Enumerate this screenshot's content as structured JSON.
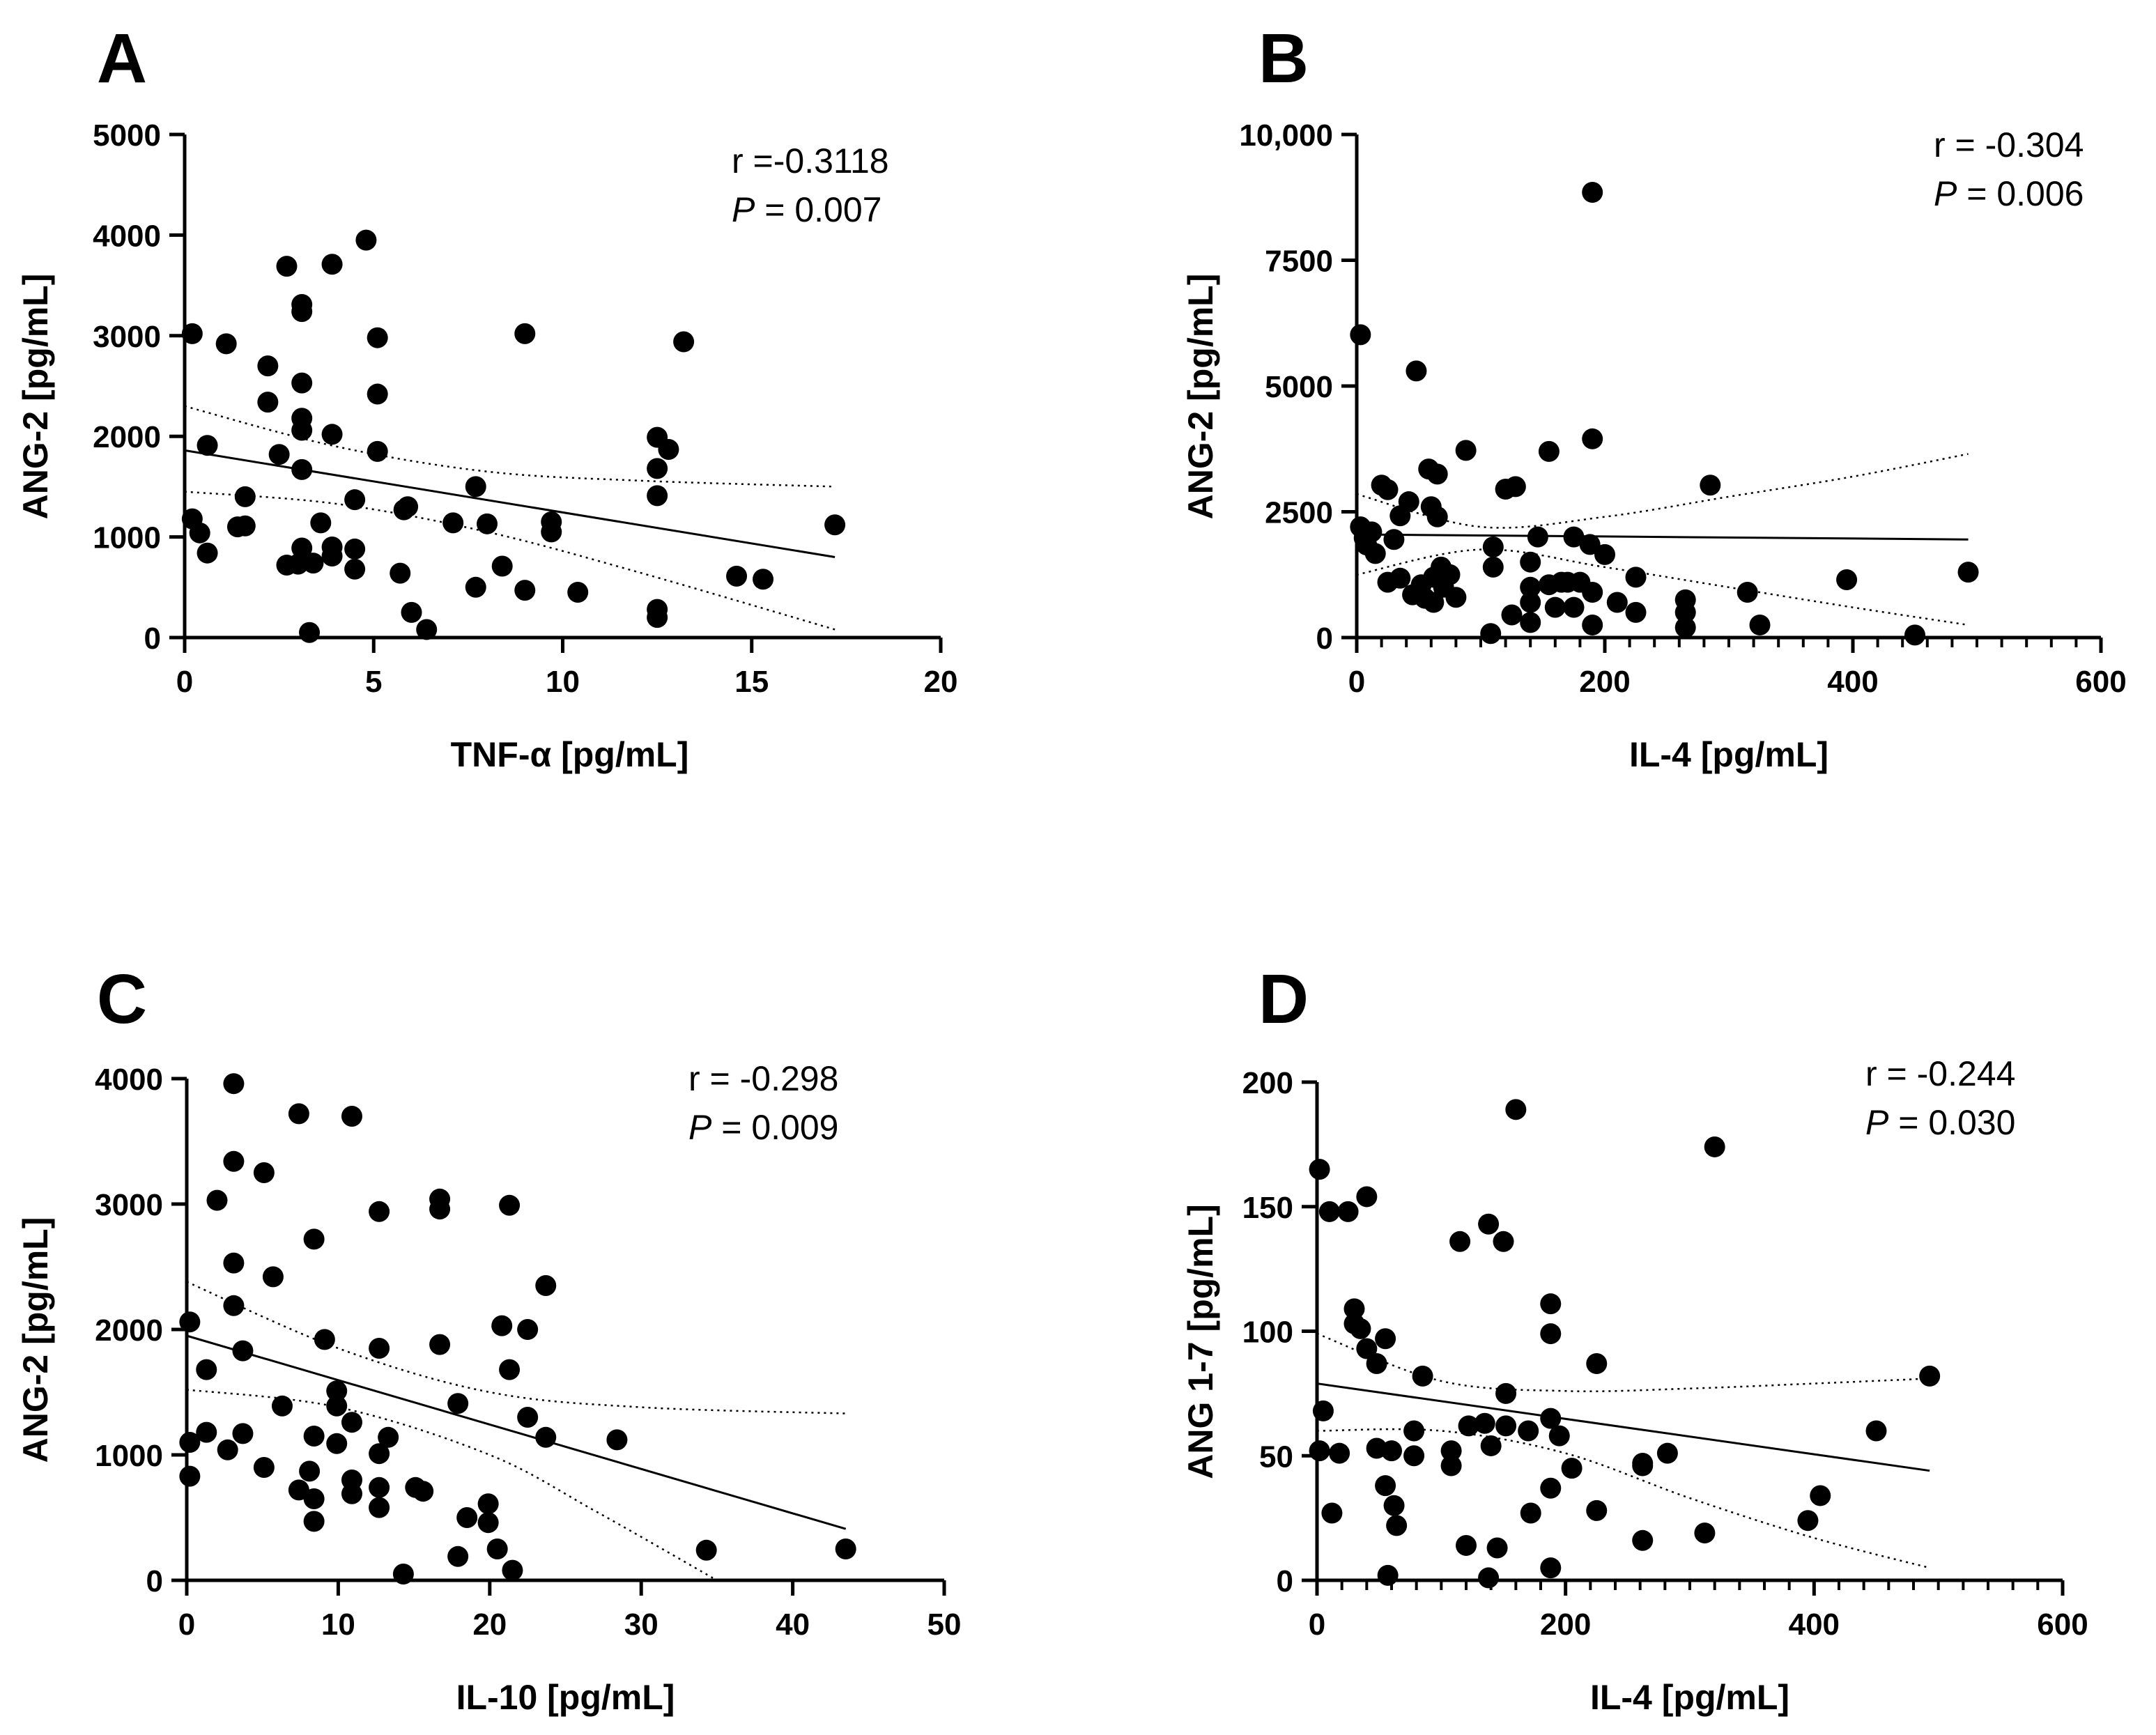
{
  "chart_data": [
    {
      "id": "A",
      "type": "scatter",
      "panel_label": "A",
      "xlabel": "TNF-α [pg/mL]",
      "ylabel": "ANG-2 [pg/mL]",
      "xlim": [
        0,
        20
      ],
      "ylim": [
        0,
        5000
      ],
      "xticks": [
        0,
        5,
        10,
        15,
        20
      ],
      "xtick_labels": [
        "0",
        "5",
        "10",
        "15",
        "20"
      ],
      "yticks": [
        0,
        1000,
        2000,
        3000,
        4000,
        5000
      ],
      "ytick_labels": [
        "0",
        "1000",
        "2000",
        "3000",
        "4000",
        "5000"
      ],
      "minor_x": 0,
      "stat_r": "r =-0.3118",
      "stat_p_symbol": "P",
      "stat_p_value": " = 0.007",
      "regression": {
        "x1": 0,
        "y1": 1860,
        "x2": 17.2,
        "y2": 800
      },
      "ci_upper": [
        [
          0,
          2300
        ],
        [
          4,
          1900
        ],
        [
          8,
          1650
        ],
        [
          12,
          1560
        ],
        [
          17.2,
          1500
        ]
      ],
      "ci_lower": [
        [
          0,
          1450
        ],
        [
          4,
          1330
        ],
        [
          8,
          1050
        ],
        [
          12,
          650
        ],
        [
          17.2,
          80
        ]
      ],
      "points": [
        [
          0.2,
          3020
        ],
        [
          0.2,
          1180
        ],
        [
          0.4,
          1040
        ],
        [
          0.6,
          840
        ],
        [
          0.6,
          1910
        ],
        [
          1.1,
          2920
        ],
        [
          1.4,
          1100
        ],
        [
          1.6,
          1400
        ],
        [
          1.6,
          1110
        ],
        [
          2.2,
          2700
        ],
        [
          2.2,
          2340
        ],
        [
          2.5,
          1820
        ],
        [
          2.7,
          3690
        ],
        [
          2.7,
          720
        ],
        [
          3.0,
          730
        ],
        [
          3.1,
          3310
        ],
        [
          3.1,
          3240
        ],
        [
          3.1,
          2530
        ],
        [
          3.1,
          2180
        ],
        [
          3.1,
          2060
        ],
        [
          3.1,
          1670
        ],
        [
          3.1,
          890
        ],
        [
          3.3,
          50
        ],
        [
          3.4,
          740
        ],
        [
          3.6,
          1140
        ],
        [
          3.9,
          3710
        ],
        [
          3.9,
          2020
        ],
        [
          3.9,
          900
        ],
        [
          3.9,
          810
        ],
        [
          4.5,
          1370
        ],
        [
          4.5,
          880
        ],
        [
          4.5,
          680
        ],
        [
          4.8,
          3950
        ],
        [
          5.1,
          2980
        ],
        [
          5.1,
          2420
        ],
        [
          5.1,
          1850
        ],
        [
          5.7,
          640
        ],
        [
          5.8,
          1270
        ],
        [
          5.9,
          1300
        ],
        [
          6.0,
          250
        ],
        [
          6.4,
          80
        ],
        [
          7.1,
          1140
        ],
        [
          7.7,
          1500
        ],
        [
          7.7,
          500
        ],
        [
          8.0,
          1130
        ],
        [
          8.4,
          710
        ],
        [
          9.0,
          3020
        ],
        [
          9.0,
          470
        ],
        [
          9.7,
          1150
        ],
        [
          9.7,
          1050
        ],
        [
          10.4,
          450
        ],
        [
          12.5,
          1990
        ],
        [
          12.5,
          1680
        ],
        [
          12.5,
          1410
        ],
        [
          12.5,
          280
        ],
        [
          12.5,
          200
        ],
        [
          12.8,
          1870
        ],
        [
          13.2,
          2940
        ],
        [
          14.6,
          610
        ],
        [
          15.3,
          580
        ],
        [
          17.2,
          1120
        ]
      ]
    },
    {
      "id": "B",
      "type": "scatter",
      "panel_label": "B",
      "xlabel": "IL-4 [pg/mL]",
      "ylabel": "ANG-2 [pg/mL]",
      "xlim": [
        0,
        600
      ],
      "ylim": [
        0,
        10000
      ],
      "xticks": [
        0,
        200,
        400,
        600
      ],
      "xtick_labels": [
        "0",
        "200",
        "400",
        "600"
      ],
      "yticks": [
        0,
        2500,
        5000,
        7500,
        10000
      ],
      "ytick_labels": [
        "0",
        "2500",
        "5000",
        "7500",
        "10,000"
      ],
      "minor_x": 20,
      "stat_r": "r = -0.304",
      "stat_p_symbol": "P",
      "stat_p_value": " = 0.006",
      "regression": {
        "x1": 0,
        "y1": 2050,
        "x2": 493,
        "y2": 1950
      },
      "ci_upper": [
        [
          0,
          2850
        ],
        [
          100,
          2200
        ],
        [
          200,
          2400
        ],
        [
          300,
          2800
        ],
        [
          400,
          3200
        ],
        [
          493,
          3650
        ]
      ],
      "ci_lower": [
        [
          0,
          1250
        ],
        [
          100,
          1750
        ],
        [
          200,
          1400
        ],
        [
          300,
          1000
        ],
        [
          400,
          600
        ],
        [
          493,
          250
        ]
      ],
      "points": [
        [
          3,
          6020
        ],
        [
          3,
          2200
        ],
        [
          6,
          1980
        ],
        [
          8,
          1840
        ],
        [
          12,
          2100
        ],
        [
          15,
          1670
        ],
        [
          20,
          3030
        ],
        [
          25,
          2940
        ],
        [
          25,
          1100
        ],
        [
          30,
          1950
        ],
        [
          35,
          1180
        ],
        [
          35,
          2420
        ],
        [
          42,
          2700
        ],
        [
          45,
          850
        ],
        [
          48,
          5300
        ],
        [
          52,
          1050
        ],
        [
          55,
          780
        ],
        [
          58,
          3350
        ],
        [
          60,
          2600
        ],
        [
          62,
          700
        ],
        [
          62,
          1200
        ],
        [
          65,
          3250
        ],
        [
          65,
          2400
        ],
        [
          68,
          1400
        ],
        [
          70,
          1000
        ],
        [
          75,
          1250
        ],
        [
          80,
          800
        ],
        [
          88,
          3720
        ],
        [
          108,
          80
        ],
        [
          110,
          1800
        ],
        [
          110,
          1400
        ],
        [
          120,
          2950
        ],
        [
          125,
          450
        ],
        [
          128,
          3000
        ],
        [
          140,
          1500
        ],
        [
          140,
          1000
        ],
        [
          140,
          700
        ],
        [
          140,
          300
        ],
        [
          146,
          2000
        ],
        [
          155,
          3700
        ],
        [
          155,
          1050
        ],
        [
          160,
          600
        ],
        [
          165,
          1100
        ],
        [
          170,
          1100
        ],
        [
          175,
          2000
        ],
        [
          175,
          600
        ],
        [
          180,
          1100
        ],
        [
          188,
          1850
        ],
        [
          190,
          8850
        ],
        [
          190,
          3950
        ],
        [
          190,
          900
        ],
        [
          190,
          250
        ],
        [
          200,
          1650
        ],
        [
          210,
          700
        ],
        [
          225,
          1200
        ],
        [
          225,
          500
        ],
        [
          265,
          750
        ],
        [
          265,
          500
        ],
        [
          265,
          200
        ],
        [
          285,
          3030
        ],
        [
          315,
          900
        ],
        [
          325,
          250
        ],
        [
          395,
          1150
        ],
        [
          450,
          50
        ],
        [
          493,
          1300
        ]
      ]
    },
    {
      "id": "C",
      "type": "scatter",
      "panel_label": "C",
      "xlabel": "IL-10 [pg/mL]",
      "ylabel": "ANG-2 [pg/mL]",
      "xlim": [
        0,
        50
      ],
      "ylim": [
        0,
        4000
      ],
      "xticks": [
        0,
        10,
        20,
        30,
        40,
        50
      ],
      "xtick_labels": [
        "0",
        "10",
        "20",
        "30",
        "40",
        "50"
      ],
      "yticks": [
        0,
        1000,
        2000,
        3000,
        4000
      ],
      "ytick_labels": [
        "0",
        "1000",
        "2000",
        "3000",
        "4000"
      ],
      "minor_x": 0,
      "stat_r": "r = -0.298",
      "stat_p_symbol": "P",
      "stat_p_value": " = 0.009",
      "regression": {
        "x1": 0,
        "y1": 1950,
        "x2": 43.5,
        "y2": 410
      },
      "ci_upper": [
        [
          0,
          2380
        ],
        [
          10,
          1850
        ],
        [
          20,
          1500
        ],
        [
          30,
          1380
        ],
        [
          43.5,
          1330
        ]
      ],
      "ci_lower": [
        [
          0,
          1520
        ],
        [
          10,
          1380
        ],
        [
          20,
          1000
        ],
        [
          27,
          550
        ],
        [
          35,
          0
        ]
      ],
      "points": [
        [
          0.2,
          2060
        ],
        [
          0.2,
          1100
        ],
        [
          0.2,
          830
        ],
        [
          1.3,
          1680
        ],
        [
          1.3,
          1180
        ],
        [
          2.0,
          3030
        ],
        [
          2.7,
          1040
        ],
        [
          3.1,
          3960
        ],
        [
          3.1,
          3340
        ],
        [
          3.1,
          2530
        ],
        [
          3.1,
          2190
        ],
        [
          3.7,
          1830
        ],
        [
          3.7,
          1170
        ],
        [
          5.1,
          3250
        ],
        [
          5.1,
          900
        ],
        [
          5.7,
          2420
        ],
        [
          6.3,
          1390
        ],
        [
          7.4,
          3720
        ],
        [
          7.4,
          720
        ],
        [
          8.1,
          870
        ],
        [
          8.4,
          2720
        ],
        [
          8.4,
          1150
        ],
        [
          8.4,
          650
        ],
        [
          8.4,
          470
        ],
        [
          9.1,
          1920
        ],
        [
          9.9,
          1510
        ],
        [
          9.9,
          1390
        ],
        [
          9.9,
          1090
        ],
        [
          10.9,
          3700
        ],
        [
          10.9,
          1260
        ],
        [
          10.9,
          800
        ],
        [
          10.9,
          690
        ],
        [
          12.7,
          2940
        ],
        [
          12.7,
          1850
        ],
        [
          12.7,
          1010
        ],
        [
          12.7,
          740
        ],
        [
          12.7,
          580
        ],
        [
          13.3,
          1140
        ],
        [
          14.3,
          50
        ],
        [
          15.1,
          740
        ],
        [
          15.6,
          710
        ],
        [
          16.7,
          3040
        ],
        [
          16.7,
          2960
        ],
        [
          16.7,
          1880
        ],
        [
          17.9,
          1410
        ],
        [
          17.9,
          190
        ],
        [
          18.5,
          500
        ],
        [
          19.9,
          610
        ],
        [
          19.9,
          460
        ],
        [
          20.5,
          250
        ],
        [
          20.8,
          2030
        ],
        [
          21.3,
          2990
        ],
        [
          21.3,
          1680
        ],
        [
          21.5,
          80
        ],
        [
          22.5,
          2000
        ],
        [
          22.5,
          1300
        ],
        [
          23.7,
          2350
        ],
        [
          23.7,
          1140
        ],
        [
          28.4,
          1120
        ],
        [
          34.3,
          240
        ],
        [
          43.5,
          250
        ]
      ]
    },
    {
      "id": "D",
      "type": "scatter",
      "panel_label": "D",
      "xlabel": "IL-4 [pg/mL]",
      "ylabel": "ANG 1-7 [pg/mL]",
      "xlim": [
        0,
        600
      ],
      "ylim": [
        0,
        200
      ],
      "xticks": [
        0,
        200,
        400,
        600
      ],
      "xtick_labels": [
        "0",
        "200",
        "400",
        "600"
      ],
      "yticks": [
        0,
        50,
        100,
        150,
        200
      ],
      "ytick_labels": [
        "0",
        "50",
        "100",
        "150",
        "200"
      ],
      "minor_x": 20,
      "stat_r": "r = -0.244",
      "stat_p_symbol": "P",
      "stat_p_value": " = 0.030",
      "regression": {
        "x1": 0,
        "y1": 79,
        "x2": 493,
        "y2": 44
      },
      "ci_upper": [
        [
          0,
          99
        ],
        [
          100,
          80
        ],
        [
          200,
          76
        ],
        [
          300,
          77
        ],
        [
          400,
          79
        ],
        [
          493,
          81
        ]
      ],
      "ci_lower": [
        [
          0,
          60
        ],
        [
          100,
          60
        ],
        [
          200,
          51
        ],
        [
          300,
          33
        ],
        [
          400,
          17
        ],
        [
          493,
          5
        ]
      ],
      "points": [
        [
          2,
          165
        ],
        [
          2,
          52
        ],
        [
          5,
          68
        ],
        [
          10,
          148
        ],
        [
          12,
          27
        ],
        [
          18,
          51
        ],
        [
          25,
          148
        ],
        [
          30,
          109
        ],
        [
          30,
          103
        ],
        [
          35,
          101
        ],
        [
          40,
          93
        ],
        [
          40,
          154
        ],
        [
          48,
          87
        ],
        [
          48,
          53
        ],
        [
          55,
          97
        ],
        [
          55,
          38
        ],
        [
          57,
          2
        ],
        [
          60,
          52
        ],
        [
          62,
          30
        ],
        [
          64,
          22
        ],
        [
          78,
          50
        ],
        [
          78,
          60
        ],
        [
          85,
          82
        ],
        [
          108,
          52
        ],
        [
          108,
          46
        ],
        [
          115,
          136
        ],
        [
          120,
          14
        ],
        [
          122,
          62
        ],
        [
          135,
          63
        ],
        [
          138,
          1
        ],
        [
          138,
          143
        ],
        [
          140,
          54
        ],
        [
          145,
          13
        ],
        [
          150,
          136
        ],
        [
          152,
          75
        ],
        [
          152,
          62
        ],
        [
          160,
          189
        ],
        [
          170,
          60
        ],
        [
          172,
          27
        ],
        [
          188,
          111
        ],
        [
          188,
          99
        ],
        [
          188,
          65
        ],
        [
          188,
          37
        ],
        [
          188,
          5
        ],
        [
          195,
          58
        ],
        [
          205,
          45
        ],
        [
          225,
          87
        ],
        [
          225,
          28
        ],
        [
          262,
          47
        ],
        [
          262,
          46
        ],
        [
          262,
          16
        ],
        [
          282,
          51
        ],
        [
          312,
          19
        ],
        [
          320,
          174
        ],
        [
          395,
          24
        ],
        [
          405,
          34
        ],
        [
          450,
          60
        ],
        [
          493,
          82
        ]
      ]
    }
  ]
}
